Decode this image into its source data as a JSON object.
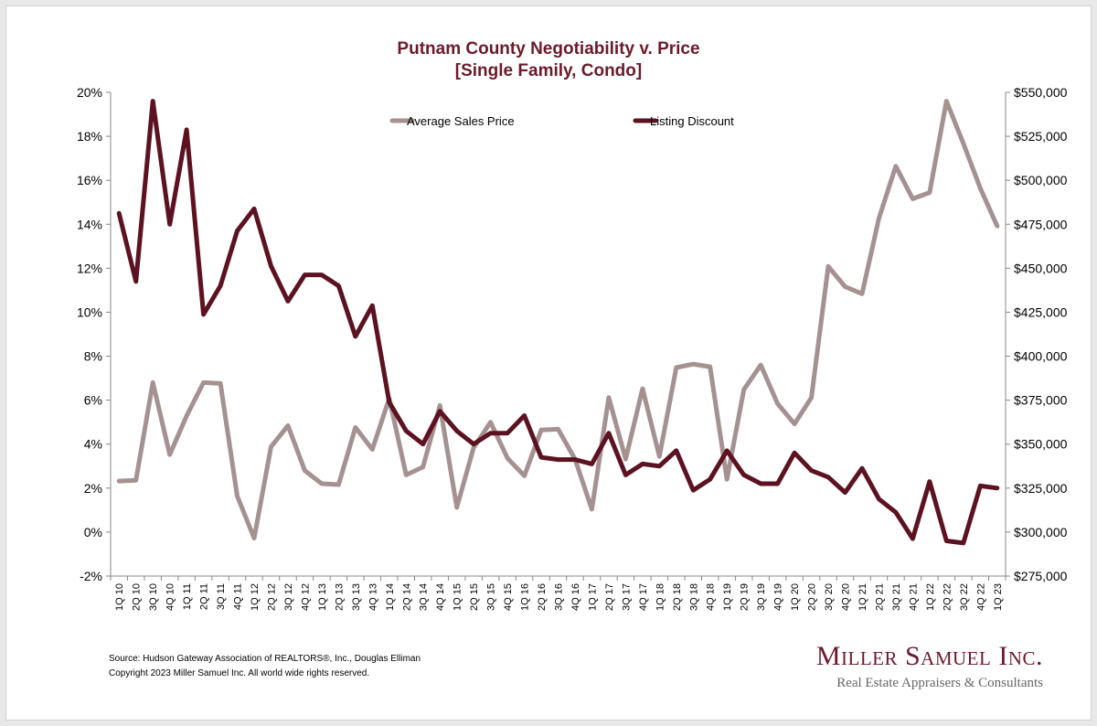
{
  "chart_data": {
    "type": "line",
    "title": "Putnam County Negotiability v. Price",
    "subtitle": "[Single Family, Condo]",
    "categories": [
      "1Q 10",
      "2Q 10",
      "3Q 10",
      "4Q 10",
      "1Q 11",
      "2Q 11",
      "3Q 11",
      "4Q 11",
      "1Q 12",
      "2Q 12",
      "3Q 12",
      "4Q 12",
      "1Q 13",
      "2Q 13",
      "3Q 13",
      "4Q 13",
      "1Q 14",
      "2Q 14",
      "3Q 14",
      "4Q 14",
      "1Q 15",
      "2Q 15",
      "3Q 15",
      "4Q 15",
      "1Q 16",
      "2Q 16",
      "3Q 16",
      "4Q 16",
      "1Q 17",
      "2Q 17",
      "3Q 17",
      "4Q 17",
      "1Q 18",
      "2Q 18",
      "3Q 18",
      "4Q 18",
      "1Q 19",
      "2Q 19",
      "3Q 19",
      "4Q 19",
      "1Q 20",
      "2Q 20",
      "3Q 20",
      "4Q 20",
      "1Q 21",
      "2Q 21",
      "3Q 21",
      "4Q 21",
      "1Q 22",
      "2Q 22",
      "3Q 22",
      "4Q 22",
      "1Q 23"
    ],
    "series": [
      {
        "name": "Average Sales Price",
        "axis": "right",
        "color": "#a69191",
        "values": [
          329000,
          329500,
          385000,
          344000,
          366000,
          385000,
          384500,
          320500,
          296500,
          348500,
          360500,
          335000,
          327500,
          327000,
          359500,
          347000,
          376000,
          332500,
          337000,
          372000,
          314000,
          348000,
          362500,
          342000,
          332000,
          358000,
          358500,
          341500,
          313000,
          376500,
          341500,
          381500,
          343000,
          393500,
          395500,
          394000,
          330000,
          381000,
          395000,
          373000,
          361500,
          376500,
          451000,
          439500,
          435500,
          478500,
          508000,
          489500,
          493000,
          545000,
          521000,
          495500,
          474000
        ]
      },
      {
        "name": "Listing Discount",
        "axis": "left",
        "color": "#5c1220",
        "values": [
          14.5,
          11.4,
          19.6,
          14.0,
          18.3,
          9.9,
          11.2,
          13.7,
          14.7,
          12.1,
          10.5,
          11.7,
          11.7,
          11.2,
          8.9,
          10.3,
          5.9,
          4.6,
          4.0,
          5.5,
          4.6,
          4.0,
          4.5,
          4.5,
          5.3,
          3.4,
          3.3,
          3.3,
          3.1,
          4.5,
          2.6,
          3.1,
          3.0,
          3.7,
          1.9,
          2.4,
          3.7,
          2.6,
          2.2,
          2.2,
          3.6,
          2.8,
          2.5,
          1.8,
          2.9,
          1.5,
          0.9,
          -0.3,
          2.3,
          -0.4,
          -0.5,
          2.1,
          2.0
        ]
      }
    ],
    "y_left": {
      "min": -2,
      "max": 20,
      "step": 2,
      "ticks": [
        "-2%",
        "0%",
        "2%",
        "4%",
        "6%",
        "8%",
        "10%",
        "12%",
        "14%",
        "16%",
        "18%",
        "20%"
      ]
    },
    "y_right": {
      "min": 275000,
      "max": 550000,
      "step": 25000,
      "ticks": [
        "$275,000",
        "$300,000",
        "$325,000",
        "$350,000",
        "$375,000",
        "$400,000",
        "$425,000",
        "$450,000",
        "$475,000",
        "$500,000",
        "$525,000",
        "$550,000"
      ]
    },
    "grid": false,
    "legend_position": "top-center"
  },
  "footer": {
    "source": "Source: Hudson Gateway Association of REALTORS®, Inc., Douglas Elliman",
    "copyright": "Copyright 2023 Miller Samuel Inc.  All world wide rights reserved."
  },
  "brand": {
    "name": "Miller Samuel Inc.",
    "tagline": "Real Estate Appraisers & Consultants"
  }
}
